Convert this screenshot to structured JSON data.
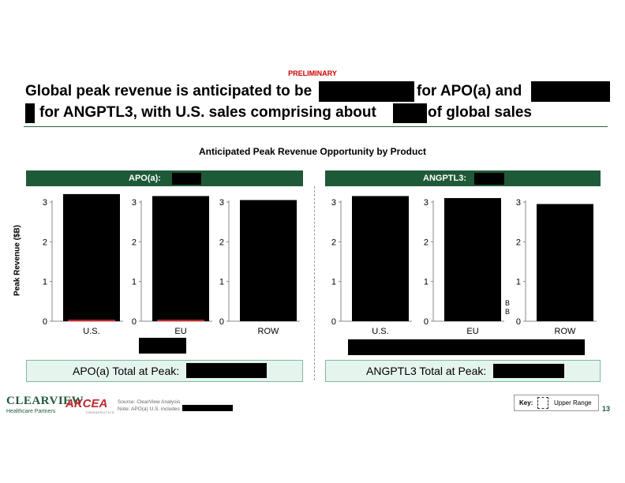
{
  "slide": {
    "preliminary": "PRELIMINARY",
    "headline_line1_a": "Global peak revenue is anticipated to be",
    "headline_line1_b": "for APO(a) and",
    "headline_line2_a": "for ANGPTL3, with U.S. sales comprising about",
    "headline_line2_b": "of global sales",
    "chart_title": "Anticipated Peak Revenue Opportunity by Product",
    "y_axis_label": "Peak Revenue ($B)",
    "page_number": "13"
  },
  "panels": {
    "apo": {
      "header": "APO(a):",
      "total_label": "APO(a) Total at Peak:"
    },
    "angptl3": {
      "header": "ANGPTL3:",
      "total_label": "ANGPTL3 Total at Peak:"
    }
  },
  "footer": {
    "source_line1": "Source: ClearView Analysis",
    "source_line2": "Note: APO(a) U.S. includes",
    "key_label": "Key:",
    "key_item": "Upper Range",
    "logo_clearview": "CLEARVIEW",
    "logo_clearview_sub": "Healthcare Partners",
    "logo_akcea": "AKCEA",
    "logo_akcea_sub": "THERAPEUTICS"
  },
  "colors": {
    "brand_green": "#1f5a38",
    "bar": "#000000",
    "bar_base_accent": "#c0282d",
    "total_box_fill": "#e6f4ee"
  },
  "chart_data": [
    {
      "type": "bar",
      "panel": "APO(a)",
      "categories": [
        "U.S."
      ],
      "values": [
        3.2
      ],
      "ylim": [
        0,
        3
      ],
      "yticks": [
        0,
        1,
        2,
        3
      ]
    },
    {
      "type": "bar",
      "panel": "APO(a)",
      "categories": [
        "EU"
      ],
      "values": [
        3.15
      ],
      "ylim": [
        0,
        3
      ],
      "yticks": [
        0,
        1,
        2,
        3
      ]
    },
    {
      "type": "bar",
      "panel": "APO(a)",
      "categories": [
        "ROW"
      ],
      "values": [
        3.05
      ],
      "ylim": [
        0,
        3
      ],
      "yticks": [
        0,
        1,
        2,
        3
      ]
    },
    {
      "type": "bar",
      "panel": "ANGPTL3",
      "categories": [
        "U.S."
      ],
      "values": [
        3.15
      ],
      "ylim": [
        0,
        3
      ],
      "yticks": [
        0,
        1,
        2,
        3
      ]
    },
    {
      "type": "bar",
      "panel": "ANGPTL3",
      "categories": [
        "EU"
      ],
      "values": [
        3.1
      ],
      "ylim": [
        0,
        3
      ],
      "yticks": [
        0,
        1,
        2,
        3
      ],
      "annotation": "B\nB"
    },
    {
      "type": "bar",
      "panel": "ANGPTL3",
      "categories": [
        "ROW"
      ],
      "values": [
        2.95
      ],
      "ylim": [
        0,
        3
      ],
      "yticks": [
        0,
        1,
        2,
        3
      ]
    }
  ]
}
